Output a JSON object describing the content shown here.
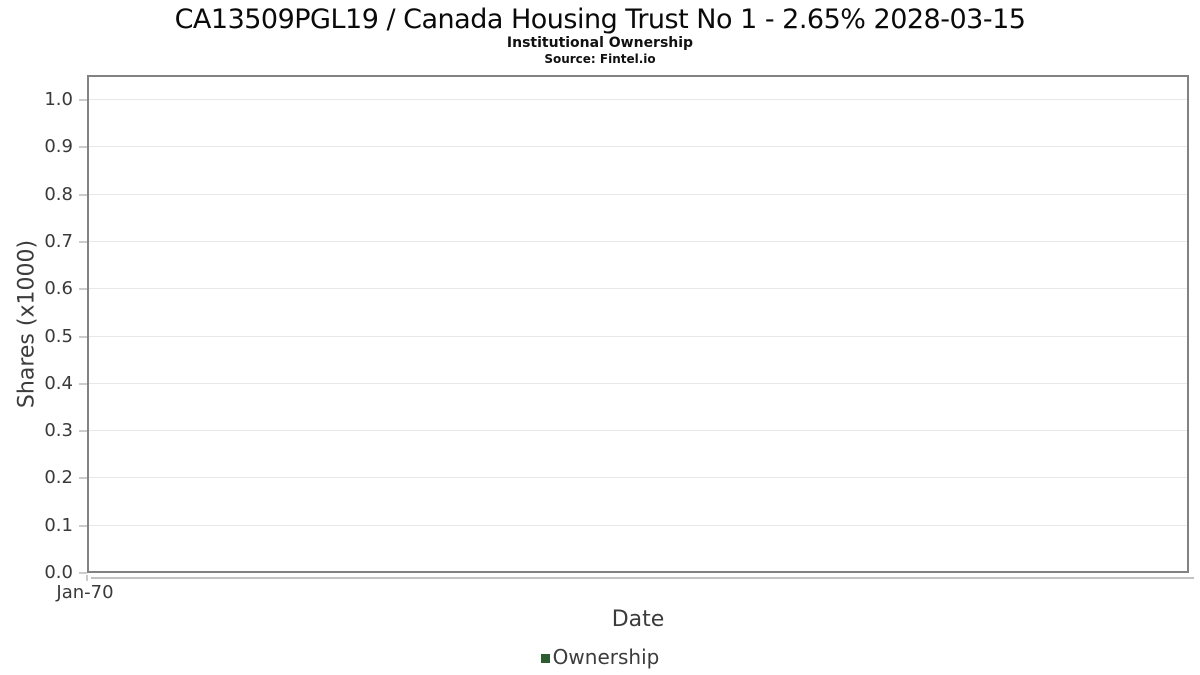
{
  "header": {
    "title": "CA13509PGL19 / Canada Housing Trust No 1 - 2.65% 2028-03-15",
    "subtitle": "Institutional Ownership",
    "source": "Source: Fintel.io"
  },
  "chart_data": {
    "type": "line",
    "title": "CA13509PGL19 / Canada Housing Trust No 1 - 2.65% 2028-03-15",
    "subtitle": "Institutional Ownership",
    "source": "Source: Fintel.io",
    "xlabel": "Date",
    "ylabel": "Shares (x1000)",
    "x_ticks": [
      "Jan-70"
    ],
    "y_ticks": [
      {
        "label": "0.0",
        "value": 0.0
      },
      {
        "label": "0.1",
        "value": 0.1
      },
      {
        "label": "0.2",
        "value": 0.2
      },
      {
        "label": "0.3",
        "value": 0.3
      },
      {
        "label": "0.4",
        "value": 0.4
      },
      {
        "label": "0.5",
        "value": 0.5
      },
      {
        "label": "0.6",
        "value": 0.6
      },
      {
        "label": "0.7",
        "value": 0.7
      },
      {
        "label": "0.8",
        "value": 0.8
      },
      {
        "label": "0.9",
        "value": 0.9
      },
      {
        "label": "1.0",
        "value": 1.0
      }
    ],
    "ylim": [
      0,
      1.05
    ],
    "grid": true,
    "legend_position": "bottom",
    "series": [
      {
        "name": "Ownership",
        "color": "#2d5c30",
        "x": [],
        "values": []
      }
    ]
  },
  "colors": {
    "plot_border": "#828282",
    "gridline": "#e8e8e8",
    "tick_mark": "#cccccc",
    "shadow": "#c2c2c2",
    "axis_text": "#3a3a3a",
    "legend_swatch": "#2d5c30"
  }
}
